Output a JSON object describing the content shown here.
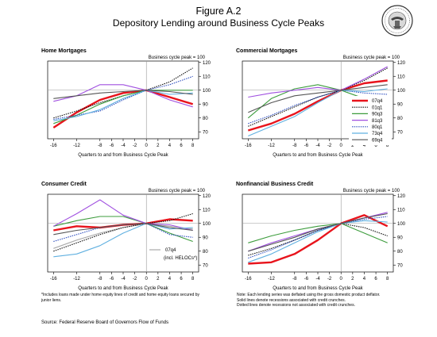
{
  "figure": {
    "label": "Figure A.2",
    "title": "Depository Lending around Business Cycle Peaks",
    "source": "Source: Federal Reserve Board of Governors Flow of Funds",
    "footnote": "*Includes loans made under home equity lines of credit and home equity loans secured by junior liens.",
    "notes": [
      "Note: Each lending series was deflated using the gross domestic product deflator.",
      "Solid lines denote recessions associated with credit crunches.",
      "Dotted lines denote recessions not associated with credit crunches."
    ],
    "seal_name": "federal-reserve-seal"
  },
  "legend": [
    {
      "name": "07q4",
      "color": "#e8141c",
      "style": "solid"
    },
    {
      "name": "01q1",
      "color": "#111111",
      "style": "dotted"
    },
    {
      "name": "90q3",
      "color": "#3c9c3c",
      "style": "solid"
    },
    {
      "name": "81q3",
      "color": "#a050e0",
      "style": "solid"
    },
    {
      "name": "80q1",
      "color": "#3050c0",
      "style": "dotted"
    },
    {
      "name": "73q4",
      "color": "#60b0e0",
      "style": "solid"
    },
    {
      "name": "69q4",
      "color": "#555555",
      "style": "solid"
    }
  ],
  "chart_data": [
    {
      "type": "line",
      "title": "Home Mortgages",
      "annotation": "Business cycle peak = 100",
      "xlabel": "Quarters to and from Business Cycle Peak",
      "xlim": [
        -17,
        9
      ],
      "ylim": [
        65,
        121
      ],
      "xticks": [
        -16,
        -12,
        -8,
        -6,
        -4,
        -2,
        0,
        2,
        4,
        6,
        8
      ],
      "yticks": [
        70,
        80,
        90,
        100,
        110,
        120
      ],
      "x": [
        -16,
        -12,
        -8,
        -4,
        0,
        4,
        8
      ],
      "series": [
        {
          "name": "07q4",
          "values": [
            73,
            84,
            93,
            98,
            100,
            95,
            90
          ]
        },
        {
          "name": "01q1",
          "values": [
            80,
            85,
            91,
            96,
            100,
            106,
            116
          ]
        },
        {
          "name": "90q3",
          "values": [
            76,
            82,
            90,
            96,
            100,
            100,
            100
          ]
        },
        {
          "name": "81q3",
          "values": [
            92,
            96,
            104,
            104,
            100,
            93,
            88
          ]
        },
        {
          "name": "80q1",
          "values": [
            79,
            82,
            85,
            93,
            100,
            104,
            110
          ]
        },
        {
          "name": "73q4",
          "values": [
            78,
            81,
            86,
            94,
            100,
            97,
            98
          ]
        },
        {
          "name": "69q4",
          "values": [
            94,
            96,
            98,
            99,
            100,
            99,
            97
          ]
        }
      ]
    },
    {
      "type": "line",
      "title": "Commercial Mortgages",
      "annotation": "Business cycle peak = 100",
      "xlabel": "Quarters to and from Business Cycle Peak",
      "xlim": [
        -17,
        9
      ],
      "ylim": [
        65,
        121
      ],
      "xticks": [
        -16,
        -12,
        -8,
        -6,
        -4,
        -2,
        0,
        2,
        4,
        6,
        8
      ],
      "yticks": [
        70,
        80,
        90,
        100,
        110,
        120
      ],
      "x": [
        -16,
        -12,
        -8,
        -4,
        0,
        4,
        8
      ],
      "series": [
        {
          "name": "07q4",
          "values": [
            71,
            76,
            83,
            92,
            100,
            105,
            107
          ]
        },
        {
          "name": "01q1",
          "values": [
            74,
            81,
            88,
            95,
            100,
            107,
            116
          ]
        },
        {
          "name": "90q3",
          "values": [
            80,
            94,
            101,
            104,
            100,
            94,
            88
          ]
        },
        {
          "name": "81q3",
          "values": [
            95,
            98,
            100,
            102,
            100,
            108,
            117
          ]
        },
        {
          "name": "80q1",
          "values": [
            76,
            82,
            89,
            95,
            100,
            98,
            97
          ]
        },
        {
          "name": "73q4",
          "values": [
            67,
            74,
            81,
            91,
            100,
            99,
            101
          ]
        },
        {
          "name": "69q4",
          "values": [
            84,
            91,
            96,
            98,
            100,
            102,
            104
          ]
        }
      ]
    },
    {
      "type": "line",
      "title": "Consumer Credit",
      "annotation": "Business cycle peak = 100",
      "xlabel": "Quarters to and from Business Cycle Peak",
      "inline_note": {
        "label": "07q4",
        "sublabel": "(incl. HELOCs*)"
      },
      "xlim": [
        -17,
        9
      ],
      "ylim": [
        65,
        121
      ],
      "xticks": [
        -16,
        -12,
        -8,
        -6,
        -4,
        -2,
        0,
        2,
        4,
        6,
        8
      ],
      "yticks": [
        70,
        80,
        90,
        100,
        110,
        120
      ],
      "x": [
        -16,
        -12,
        -8,
        -4,
        0,
        4,
        8
      ],
      "series": [
        {
          "name": "07q4",
          "values": [
            95,
            98,
            97,
            99,
            100,
            103,
            102
          ]
        },
        {
          "name": "07q4 (incl. HELOCs*)",
          "values": [
            82,
            88,
            93,
            97,
            100,
            98,
            96
          ]
        },
        {
          "name": "01q1",
          "values": [
            80,
            86,
            92,
            97,
            100,
            102,
            107
          ]
        },
        {
          "name": "90q3",
          "values": [
            98,
            102,
            105,
            105,
            100,
            93,
            87
          ]
        },
        {
          "name": "81q3",
          "values": [
            98,
            107,
            117,
            106,
            100,
            99,
            95
          ]
        },
        {
          "name": "80q1",
          "values": [
            87,
            92,
            97,
            99,
            100,
            92,
            90
          ]
        },
        {
          "name": "73q4",
          "values": [
            76,
            78,
            84,
            93,
            100,
            96,
            97
          ]
        },
        {
          "name": "69q4",
          "values": [
            92,
            95,
            97,
            99,
            100,
            97,
            95
          ]
        }
      ]
    },
    {
      "type": "line",
      "title": "Nonfinancial Business Credit",
      "annotation": "Business cycle peak = 100",
      "xlabel": "Quarters to and from Business Cycle Peak",
      "xlim": [
        -17,
        9
      ],
      "ylim": [
        65,
        121
      ],
      "xticks": [
        -16,
        -12,
        -8,
        -6,
        -4,
        -2,
        0,
        2,
        4,
        6,
        8
      ],
      "yticks": [
        70,
        80,
        90,
        100,
        110,
        120
      ],
      "x": [
        -16,
        -12,
        -8,
        -4,
        0,
        4,
        8
      ],
      "series": [
        {
          "name": "07q4",
          "values": [
            71,
            72,
            78,
            88,
            100,
            106,
            98
          ]
        },
        {
          "name": "01q1",
          "values": [
            77,
            82,
            88,
            95,
            100,
            97,
            91
          ]
        },
        {
          "name": "90q3",
          "values": [
            86,
            91,
            95,
            98,
            100,
            93,
            86
          ]
        },
        {
          "name": "81q3",
          "values": [
            80,
            86,
            91,
            96,
            100,
            104,
            108
          ]
        },
        {
          "name": "80q1",
          "values": [
            75,
            81,
            88,
            95,
            100,
            103,
            105
          ]
        },
        {
          "name": "73q4",
          "values": [
            72,
            78,
            86,
            94,
            100,
            102,
            101
          ]
        },
        {
          "name": "69q4",
          "values": [
            80,
            85,
            90,
            96,
            100,
            104,
            107
          ]
        }
      ]
    }
  ]
}
